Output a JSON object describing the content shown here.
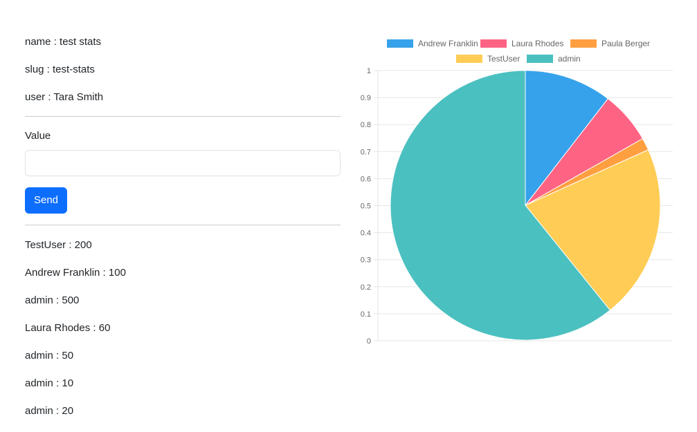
{
  "stat": {
    "name_line": "name : test stats",
    "slug_line": "slug : test-stats",
    "user_line": "user : Tara Smith"
  },
  "form": {
    "value_label": "Value",
    "value_input": "",
    "send_label": "Send"
  },
  "entries": [
    "TestUser : 200",
    "Andrew Franklin : 100",
    "admin : 500",
    "Laura Rhodes : 60",
    "admin : 50",
    "admin : 10",
    "admin : 20"
  ],
  "colors": {
    "primary_button": "#0d6efd"
  },
  "chart_data": {
    "type": "pie",
    "title": "",
    "legend_position": "top",
    "grid": true,
    "ylim": [
      0,
      1
    ],
    "y_ticks": [
      "1",
      "0.9",
      "0.8",
      "0.7",
      "0.6",
      "0.5",
      "0.4",
      "0.3",
      "0.2",
      "0.1",
      "0"
    ],
    "series": [
      {
        "name": "Andrew Franklin",
        "value": 100,
        "color": "#36a2eb"
      },
      {
        "name": "Laura Rhodes",
        "value": 60,
        "color": "#ff6384"
      },
      {
        "name": "Paula Berger",
        "value": 14,
        "color": "#ff9f40"
      },
      {
        "name": "TestUser",
        "value": 200,
        "color": "#ffcd56"
      },
      {
        "name": "admin",
        "value": 580,
        "color": "#4bc0c0"
      }
    ]
  }
}
